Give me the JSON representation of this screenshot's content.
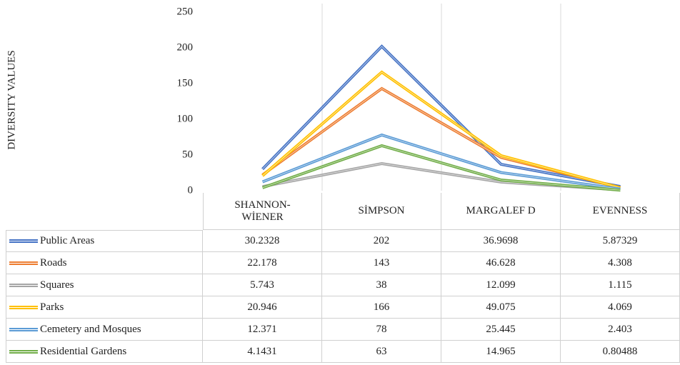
{
  "chart_data": {
    "type": "line",
    "y_axis_label": "DIVERSITY VALUES",
    "categories": [
      "SHANNON-WİENER",
      "SİMPSON",
      "MARGALEF D",
      "EVENNESS"
    ],
    "series": [
      {
        "name": "Public Areas",
        "color": "#4472c4",
        "values": [
          30.2328,
          202,
          36.9698,
          5.87329
        ]
      },
      {
        "name": "Roads",
        "color": "#ed7d31",
        "values": [
          22.178,
          143,
          46.628,
          4.308
        ]
      },
      {
        "name": "Squares",
        "color": "#a5a5a5",
        "values": [
          5.743,
          38,
          12.099,
          1.115
        ]
      },
      {
        "name": "Parks",
        "color": "#ffc000",
        "values": [
          20.946,
          166,
          49.075,
          4.069
        ]
      },
      {
        "name": "Cemetery and Mosques",
        "color": "#5b9bd5",
        "values": [
          12.371,
          78,
          25.445,
          2.403
        ]
      },
      {
        "name": "Residential Gardens",
        "color": "#70ad47",
        "values": [
          4.1431,
          63,
          14.965,
          0.80488
        ]
      }
    ],
    "ylim": [
      0,
      250
    ],
    "yticks": [
      0,
      50,
      100,
      150,
      200,
      250
    ],
    "grid": false
  }
}
